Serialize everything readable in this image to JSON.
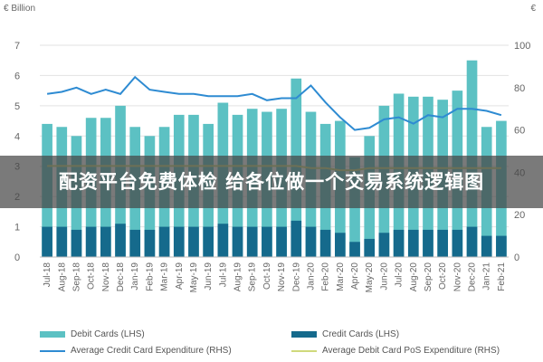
{
  "colors": {
    "debit": "#5cc1c3",
    "credit": "#156a8c",
    "avg_credit": "#2e8bd2",
    "avg_debit": "#cfd97c",
    "axis_text": "#666666",
    "grid": "#e2e2e2"
  },
  "banner_text": "配资平台免费体检 给各位做一个交易系统逻辑图",
  "chart_data": {
    "type": "bar",
    "left_axis_unit": "€ Billion",
    "right_axis_unit": "€",
    "ylim_left": [
      0,
      7
    ],
    "ylim_right": [
      0,
      100
    ],
    "yticks_left": [
      0,
      1,
      2,
      3,
      4,
      5,
      6,
      7
    ],
    "yticks_right": [
      0,
      20,
      40,
      60,
      80,
      100
    ],
    "categories": [
      "Jul-18",
      "Aug-18",
      "Sep-18",
      "Oct-18",
      "Nov-18",
      "Dec-18",
      "Jan-19",
      "Feb-19",
      "Mar-19",
      "Apr-19",
      "May-19",
      "Jun-19",
      "Jul-19",
      "Aug-19",
      "Sep-19",
      "Oct-19",
      "Nov-19",
      "Dec-19",
      "Jan-20",
      "Feb-20",
      "Mar-20",
      "Apr-20",
      "May-20",
      "Jun-20",
      "Jul-20",
      "Aug-20",
      "Sep-20",
      "Oct-20",
      "Nov-20",
      "Dec-20",
      "Jan-21",
      "Feb-21"
    ],
    "series": [
      {
        "name": "Debit Cards (LHS)",
        "kind": "bar",
        "axis": "left",
        "values": [
          4.4,
          4.3,
          4.0,
          4.6,
          4.6,
          5.0,
          4.3,
          4.0,
          4.3,
          4.7,
          4.7,
          4.4,
          5.1,
          4.7,
          4.9,
          4.8,
          4.9,
          5.9,
          4.8,
          4.4,
          4.5,
          3.3,
          4.0,
          5.0,
          5.4,
          5.3,
          5.3,
          5.2,
          5.5,
          6.5,
          4.3,
          4.5
        ]
      },
      {
        "name": "Credit Cards (LHS)",
        "kind": "bar",
        "axis": "left",
        "values": [
          1.0,
          1.0,
          0.9,
          1.0,
          1.0,
          1.1,
          0.9,
          0.9,
          1.0,
          1.0,
          1.0,
          1.0,
          1.1,
          1.0,
          1.0,
          1.0,
          1.0,
          1.2,
          1.0,
          0.9,
          0.8,
          0.5,
          0.6,
          0.8,
          0.9,
          0.9,
          0.9,
          0.9,
          0.9,
          1.0,
          0.7,
          0.7
        ]
      },
      {
        "name": "Average Credit Card Expenditure (RHS)",
        "kind": "line",
        "axis": "right",
        "values": [
          77,
          78,
          80,
          77,
          79,
          77,
          85,
          79,
          78,
          77,
          77,
          76,
          76,
          76,
          77,
          74,
          75,
          75,
          81,
          73,
          66,
          60,
          61,
          65,
          66,
          63,
          67,
          66,
          70,
          70,
          69,
          67
        ]
      },
      {
        "name": "Average Debit Card PoS Expenditure (RHS)",
        "kind": "line",
        "axis": "right",
        "values": [
          43,
          43,
          43,
          43,
          43,
          43,
          43,
          43,
          43,
          43,
          43,
          43,
          43,
          43,
          43,
          43,
          43,
          43,
          42,
          42,
          41,
          41,
          42,
          42,
          42,
          42,
          42,
          42,
          42,
          42,
          42,
          42
        ]
      }
    ]
  }
}
